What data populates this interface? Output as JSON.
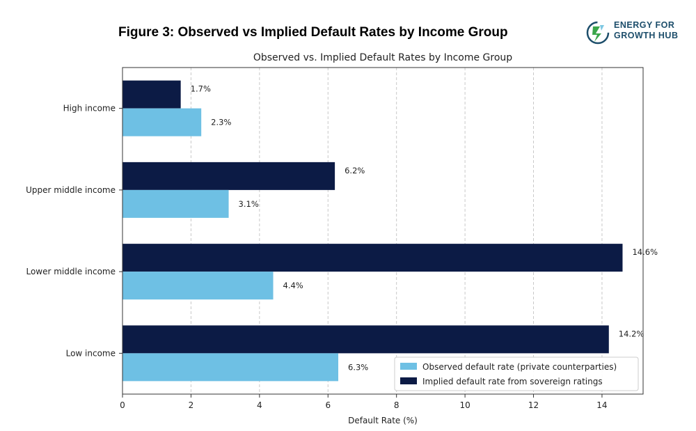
{
  "figure": {
    "title": "Figure 3: Observed vs Implied Default Rates by Income Group"
  },
  "logo": {
    "line1": "ENERGY FOR",
    "line2": "GROWTH HUB",
    "colors": {
      "green": "#3aa64a",
      "blue": "#1d4e6b",
      "light": "#7ec8e3"
    }
  },
  "chart_data": {
    "type": "bar",
    "orientation": "horizontal",
    "title": "Observed vs. Implied Default Rates by Income Group",
    "xlabel": "Default Rate (%)",
    "ylabel": "",
    "xlim": [
      0,
      15.2
    ],
    "xticks": [
      0,
      2,
      4,
      6,
      8,
      10,
      12,
      14
    ],
    "grid": "x-dashed",
    "legend_position": "bottom-right",
    "categories": [
      "High income",
      "Upper middle income",
      "Lower middle income",
      "Low income"
    ],
    "series": [
      {
        "name": "Observed default rate (private counterparties)",
        "color": "#6ec0e4",
        "values": [
          2.3,
          3.1,
          4.4,
          6.3
        ],
        "labels": [
          "2.3%",
          "3.1%",
          "4.4%",
          "6.3%"
        ]
      },
      {
        "name": "Implied default rate from sovereign ratings",
        "color": "#0c1b45",
        "values": [
          1.7,
          6.2,
          14.6,
          14.2
        ],
        "labels": [
          "1.7%",
          "6.2%",
          "14.6%",
          "14.2%"
        ]
      }
    ]
  }
}
